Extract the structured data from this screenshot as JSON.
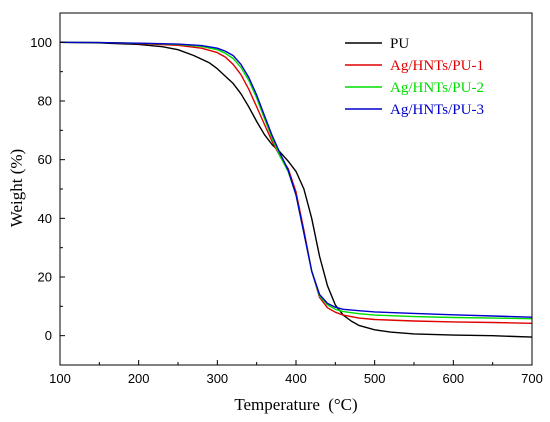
{
  "chart_data": {
    "type": "line",
    "title": "",
    "xlabel": "Temperature",
    "xlabel_unit": "(°C)",
    "ylabel": "Weight (%)",
    "xlim": [
      100,
      700
    ],
    "ylim": [
      -10,
      110
    ],
    "xticks": [
      100,
      200,
      300,
      400,
      500,
      600,
      700
    ],
    "yticks": [
      0,
      20,
      40,
      60,
      80,
      100
    ],
    "grid": false,
    "legend_position": "top-right",
    "series": [
      {
        "name": "PU",
        "color": "#000000",
        "x": [
          100,
          150,
          200,
          230,
          250,
          270,
          290,
          300,
          310,
          320,
          330,
          340,
          350,
          360,
          370,
          380,
          390,
          400,
          410,
          420,
          430,
          440,
          450,
          460,
          470,
          480,
          500,
          520,
          550,
          600,
          650,
          700
        ],
        "y": [
          100,
          99.8,
          99.3,
          98.5,
          97.5,
          95.5,
          93,
          91,
          88.5,
          86,
          82.5,
          78,
          73,
          68.5,
          65,
          62.5,
          59.5,
          56,
          50,
          40,
          27,
          17,
          10.5,
          7,
          5,
          3.5,
          2,
          1.2,
          0.6,
          0.2,
          0,
          -0.5
        ]
      },
      {
        "name": "Ag/HNTs/PU-1",
        "color": "#e00000",
        "x": [
          100,
          150,
          200,
          250,
          280,
          300,
          310,
          320,
          330,
          340,
          350,
          360,
          370,
          380,
          390,
          400,
          410,
          420,
          430,
          440,
          450,
          460,
          480,
          500,
          550,
          600,
          650,
          700
        ],
        "y": [
          100,
          99.9,
          99.6,
          99,
          98,
          96.5,
          95,
          92.5,
          89,
          84,
          78,
          72,
          66,
          61,
          57,
          49,
          36,
          22,
          13,
          9.5,
          8,
          7,
          6,
          5.5,
          5,
          4.7,
          4.5,
          4.2
        ]
      },
      {
        "name": "Ag/HNTs/PU-2",
        "color": "#00dd00",
        "x": [
          100,
          150,
          200,
          250,
          280,
          300,
          310,
          320,
          330,
          340,
          350,
          360,
          370,
          380,
          390,
          400,
          410,
          420,
          430,
          440,
          450,
          460,
          480,
          500,
          550,
          600,
          650,
          700
        ],
        "y": [
          100,
          99.9,
          99.7,
          99.3,
          98.6,
          97.5,
          96.3,
          94.5,
          91.5,
          87,
          81,
          74,
          67,
          61,
          56,
          48,
          35,
          22,
          13.5,
          10.5,
          9,
          8.2,
          7.5,
          7,
          6.5,
          6.2,
          6,
          5.8
        ]
      },
      {
        "name": "Ag/HNTs/PU-3",
        "color": "#0000cc",
        "x": [
          100,
          150,
          200,
          250,
          280,
          300,
          310,
          320,
          330,
          340,
          350,
          360,
          370,
          380,
          390,
          400,
          410,
          420,
          430,
          440,
          450,
          460,
          480,
          500,
          550,
          600,
          650,
          700
        ],
        "y": [
          100,
          99.9,
          99.7,
          99.4,
          98.9,
          98,
          97,
          95.5,
          92.5,
          88,
          82,
          75,
          68,
          62,
          56.5,
          48,
          35,
          22,
          14,
          11,
          9.7,
          9,
          8.5,
          8.1,
          7.6,
          7.1,
          6.7,
          6.3
        ]
      }
    ]
  }
}
